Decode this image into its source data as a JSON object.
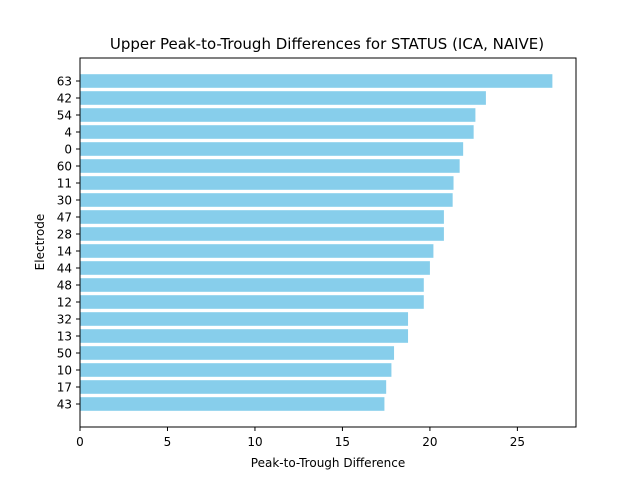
{
  "chart_data": {
    "type": "bar",
    "orientation": "horizontal",
    "title": "Upper Peak-to-Trough Differences for STATUS (ICA, NAIVE)",
    "xlabel": "Peak-to-Trough Difference",
    "ylabel": "Electrode",
    "categories": [
      "63",
      "42",
      "54",
      "4",
      "0",
      "60",
      "11",
      "30",
      "47",
      "28",
      "14",
      "44",
      "48",
      "12",
      "32",
      "13",
      "50",
      "10",
      "17",
      "43"
    ],
    "values": [
      27.0,
      23.2,
      22.6,
      22.5,
      21.9,
      21.7,
      21.35,
      21.3,
      20.8,
      20.8,
      20.2,
      20.0,
      19.65,
      19.65,
      18.75,
      18.75,
      17.95,
      17.8,
      17.5,
      17.4
    ],
    "xlim": [
      0,
      28.35
    ],
    "xticks": [
      0,
      5,
      10,
      15,
      20,
      25
    ],
    "bar_color": "#87ceeb",
    "grid": false
  }
}
